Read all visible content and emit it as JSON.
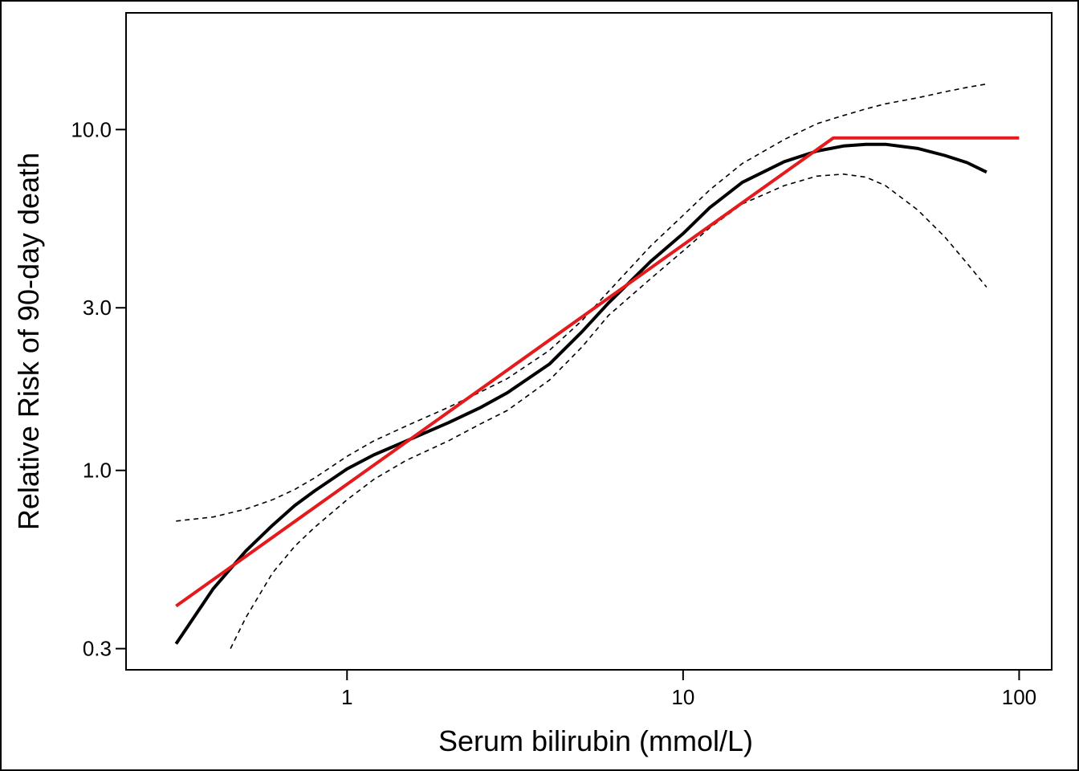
{
  "chart_data": {
    "type": "line",
    "xlabel": "Serum bilirubin (mmol/L)",
    "ylabel": "Relative Risk of 90-day death",
    "x_scale": "log",
    "y_scale": "log",
    "xlim": [
      0.22,
      125
    ],
    "ylim": [
      0.26,
      22
    ],
    "x_ticks": [
      {
        "value": 1,
        "label": "1"
      },
      {
        "value": 10,
        "label": "10"
      },
      {
        "value": 100,
        "label": "100"
      }
    ],
    "y_ticks": [
      {
        "value": 0.3,
        "label": "0.3"
      },
      {
        "value": 1,
        "label": "1.0"
      },
      {
        "value": 3,
        "label": "3.0"
      },
      {
        "value": 10,
        "label": "10.0"
      }
    ],
    "grid": false,
    "legend": "none",
    "series": [
      {
        "style": "solid",
        "color": "#000000",
        "x": [
          0.31,
          0.4,
          0.5,
          0.6,
          0.7,
          0.8,
          1.0,
          1.2,
          1.5,
          2.0,
          2.5,
          3.0,
          4.0,
          5.0,
          6.0,
          8.0,
          10.0,
          12.0,
          15.0,
          20.0,
          25.0,
          30.0,
          35.0,
          40.0,
          50.0,
          60.0,
          70.0,
          80.0
        ],
        "y": [
          0.31,
          0.45,
          0.58,
          0.69,
          0.79,
          0.87,
          1.01,
          1.11,
          1.22,
          1.38,
          1.53,
          1.69,
          2.05,
          2.55,
          3.1,
          4.1,
          4.95,
          5.9,
          7.0,
          8.05,
          8.65,
          8.95,
          9.05,
          9.05,
          8.8,
          8.4,
          8.0,
          7.5
        ]
      },
      {
        "style": "dashed",
        "color": "#000000",
        "x": [
          0.31,
          0.4,
          0.5,
          0.6,
          0.7,
          0.8,
          1.0,
          1.2,
          1.5,
          2.0,
          2.5,
          3.0,
          4.0,
          5.0,
          6.0,
          8.0,
          10.0,
          12.0,
          15.0,
          20.0,
          25.0,
          30.0,
          35.0,
          40.0,
          50.0,
          60.0,
          70.0,
          80.0
        ],
        "y": [
          0.71,
          0.73,
          0.77,
          0.82,
          0.88,
          0.95,
          1.1,
          1.22,
          1.35,
          1.53,
          1.7,
          1.86,
          2.25,
          2.75,
          3.35,
          4.55,
          5.6,
          6.65,
          7.95,
          9.35,
          10.4,
          11.0,
          11.5,
          11.9,
          12.4,
          12.9,
          13.3,
          13.6
        ]
      },
      {
        "style": "dashed",
        "color": "#000000",
        "x": [
          0.45,
          0.5,
          0.6,
          0.7,
          0.8,
          1.0,
          1.2,
          1.5,
          2.0,
          2.5,
          3.0,
          4.0,
          5.0,
          6.0,
          8.0,
          10.0,
          12.0,
          15.0,
          20.0,
          25.0,
          30.0,
          35.0,
          40.0,
          50.0,
          60.0,
          70.0,
          80.0
        ],
        "y": [
          0.3,
          0.37,
          0.5,
          0.6,
          0.68,
          0.82,
          0.94,
          1.07,
          1.22,
          1.37,
          1.5,
          1.84,
          2.3,
          2.85,
          3.65,
          4.4,
          5.15,
          6.05,
          6.85,
          7.3,
          7.4,
          7.25,
          6.85,
          5.8,
          4.85,
          4.05,
          3.45
        ]
      },
      {
        "style": "solid",
        "color": "#e41a1c",
        "x": [
          0.31,
          28.0,
          100.0
        ],
        "y": [
          0.4,
          9.45,
          9.45
        ]
      }
    ]
  }
}
